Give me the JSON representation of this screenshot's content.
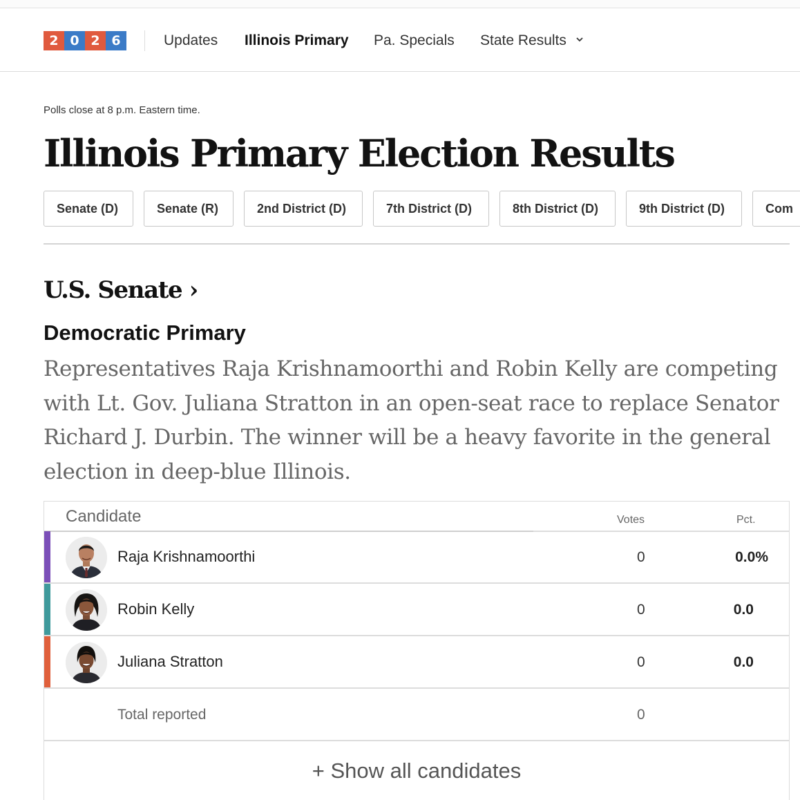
{
  "nav": {
    "logo_digits": [
      "2",
      "0",
      "2",
      "6"
    ],
    "logo_colors": [
      "#e05a3e",
      "#3b7bc7",
      "#e05a3e",
      "#3b7bc7"
    ],
    "items": [
      {
        "label": "Updates",
        "active": false
      },
      {
        "label": "Illinois Primary",
        "active": true
      },
      {
        "label": "Pa. Specials",
        "active": false
      },
      {
        "label": "State Results",
        "active": false,
        "icon": "chevron-down-icon"
      }
    ]
  },
  "header": {
    "polls_note": "Polls close at 8 p.m. Eastern time.",
    "title": "Illinois Primary Election Results"
  },
  "race_tabs": [
    "Senate (D)",
    "Senate (R)",
    "2nd District (D)",
    "7th District (D)",
    "8th District (D)",
    "9th District (D)",
    "Com"
  ],
  "race": {
    "section_title": "U.S. Senate ›",
    "primary_title": "Democratic Primary",
    "description": "Representatives Raja Krishnamoorthi and Robin Kelly are competing with Lt. Gov. Juliana Stratton in an open-seat race to replace Senator Richard J. Durbin. The winner will be a heavy favorite in the general election in deep-blue Illinois."
  },
  "results": {
    "columns": {
      "candidate": "Candidate",
      "votes": "Votes",
      "pct": "Pct."
    },
    "candidates": [
      {
        "name": "Raja Krishnamoorthi",
        "votes": "0",
        "pct": "0.0%",
        "color": "#7b4fb8"
      },
      {
        "name": "Robin Kelly",
        "votes": "0",
        "pct": "0.0",
        "color": "#3f9a9c"
      },
      {
        "name": "Juliana Stratton",
        "votes": "0",
        "pct": "0.0",
        "color": "#e0603c"
      }
    ],
    "total_label": "Total reported",
    "total_votes": "0",
    "show_all": "+ Show all candidates"
  }
}
